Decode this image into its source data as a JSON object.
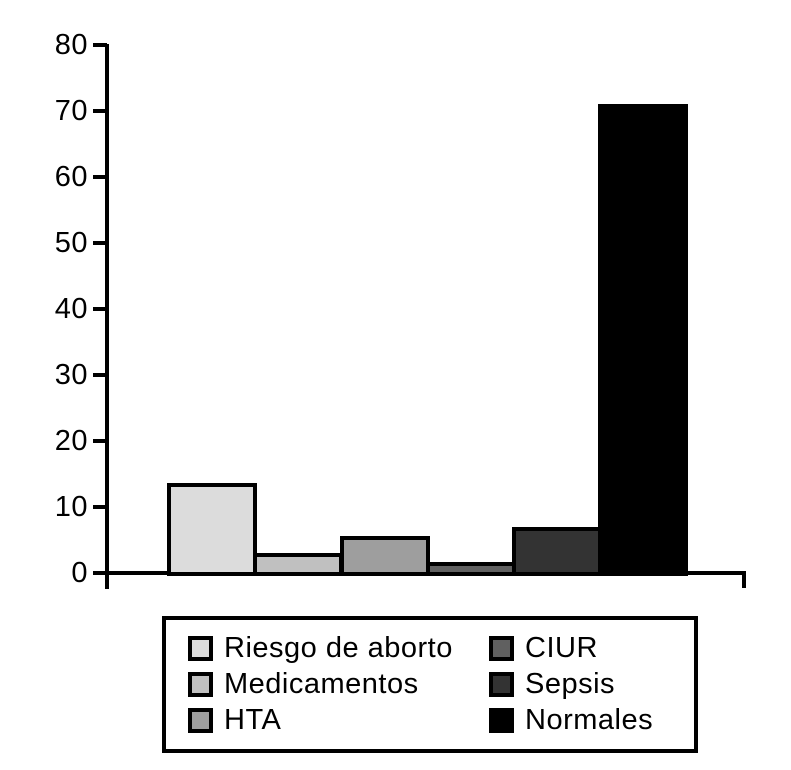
{
  "chart_data": {
    "type": "bar",
    "categories": [
      "Riesgo de aborto",
      "Medicamentos",
      "HTA",
      "CIUR",
      "Sepsis",
      "Normales"
    ],
    "values": [
      13.3,
      2.7,
      5.3,
      1.3,
      6.7,
      70.7
    ],
    "colors": [
      "#dcdcdc",
      "#c0c0c0",
      "#9e9e9e",
      "#606060",
      "#333333",
      "#000000"
    ],
    "title": "",
    "xlabel": "",
    "ylabel": "",
    "ylim": [
      0,
      80
    ],
    "ytick_interval": 10,
    "ytick_labels": [
      "0",
      "10",
      "20",
      "30",
      "40",
      "50",
      "60",
      "70",
      "80"
    ],
    "grid": false,
    "bar_border_color": "#000000",
    "axis_color": "#000000",
    "background_color": "#ffffff",
    "legend": {
      "position": "bottom",
      "columns": 2,
      "entries": [
        {
          "label": "Riesgo de aborto",
          "color": "#dcdcdc"
        },
        {
          "label": "Medicamentos",
          "color": "#c0c0c0"
        },
        {
          "label": "HTA",
          "color": "#9e9e9e"
        },
        {
          "label": "CIUR",
          "color": "#606060"
        },
        {
          "label": "Sepsis",
          "color": "#333333"
        },
        {
          "label": "Normales",
          "color": "#000000"
        }
      ]
    }
  }
}
